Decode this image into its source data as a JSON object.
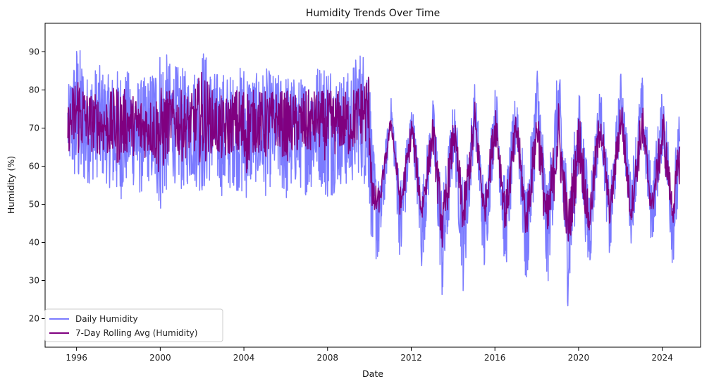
{
  "chart_data": {
    "type": "line",
    "title": "Humidity Trends Over Time",
    "xlabel": "Date",
    "ylabel": "Humidity (%)",
    "x_ticks": [
      "1996",
      "2000",
      "2004",
      "2008",
      "2012",
      "2016",
      "2020",
      "2024"
    ],
    "y_ticks": [
      20,
      30,
      40,
      50,
      60,
      70,
      80,
      90
    ],
    "xlim": [
      "1994-07-01",
      "2025-11-01"
    ],
    "ylim": [
      12.5,
      97.5
    ],
    "grid": false,
    "legend_position": "lower-left",
    "x_start": "1995-08-01",
    "x_end": "2024-11-01",
    "series": [
      {
        "name": "Daily Humidity",
        "color": "#7b7bff",
        "x": [
          "1995-08-01",
          "1996-01-15",
          "1996-07-01",
          "1997-01-15",
          "1997-07-01",
          "1998-01-15",
          "1998-07-01",
          "1999-01-15",
          "1999-07-01",
          "2000-01-15",
          "2000-07-01",
          "2001-01-15",
          "2001-07-01",
          "2002-01-15",
          "2002-07-01",
          "2003-01-15",
          "2003-07-01",
          "2004-01-15",
          "2004-07-01",
          "2005-01-15",
          "2005-07-01",
          "2006-01-15",
          "2006-07-01",
          "2007-01-15",
          "2007-07-01",
          "2008-01-15",
          "2008-07-01",
          "2009-01-15",
          "2009-07-01",
          "2009-12-20",
          "2010-03-01",
          "2010-07-01",
          "2011-01-15",
          "2011-07-01",
          "2012-01-15",
          "2012-07-01",
          "2013-01-15",
          "2013-07-01",
          "2014-01-15",
          "2014-07-01",
          "2015-01-15",
          "2015-07-01",
          "2016-01-15",
          "2016-07-01",
          "2017-01-15",
          "2017-07-01",
          "2018-01-15",
          "2018-07-01",
          "2019-01-15",
          "2019-07-01",
          "2020-01-15",
          "2020-07-01",
          "2021-01-15",
          "2021-07-01",
          "2022-01-15",
          "2022-07-01",
          "2023-01-15",
          "2023-07-01",
          "2024-01-15",
          "2024-07-01",
          "2024-11-01"
        ],
        "min": [
          61,
          52,
          55,
          57,
          55,
          50,
          56,
          52,
          56,
          47,
          57,
          53,
          56,
          52,
          57,
          51,
          55,
          50,
          56,
          52,
          57,
          50,
          55,
          52,
          57,
          50,
          55,
          54,
          58,
          52,
          34,
          35,
          72,
          32,
          68,
          32,
          64,
          22,
          62,
          26,
          68,
          30,
          68,
          30,
          66,
          26,
          66,
          26,
          64,
          22,
          60,
          29,
          69,
          33,
          72,
          39,
          66,
          38,
          64,
          33,
          50
        ],
        "max": [
          80,
          94,
          84,
          87,
          84,
          86,
          85,
          83,
          84,
          93,
          87,
          86,
          84,
          92,
          85,
          85,
          84,
          88,
          84,
          86,
          84,
          85,
          83,
          84,
          87,
          89,
          84,
          85,
          91,
          91,
          66,
          55,
          78,
          57,
          77,
          55,
          78,
          54,
          78,
          56,
          82,
          55,
          82,
          56,
          82,
          54,
          88,
          55,
          88,
          56,
          80,
          56,
          82,
          55,
          86,
          58,
          84,
          58,
          82,
          58,
          75
        ],
        "notes": "Daily values oscillate within the min/max envelope per timestamp."
      },
      {
        "name": "7-Day Rolling Avg (Humidity)",
        "color": "#800080",
        "x": [
          "1995-08-01",
          "1996-01-15",
          "1996-07-01",
          "1997-01-15",
          "1997-07-01",
          "1998-01-15",
          "1998-07-01",
          "1999-01-15",
          "1999-07-01",
          "2000-01-15",
          "2000-07-01",
          "2001-01-15",
          "2001-07-01",
          "2002-01-15",
          "2002-07-01",
          "2003-01-15",
          "2003-07-01",
          "2004-01-15",
          "2004-07-01",
          "2005-01-15",
          "2005-07-01",
          "2006-01-15",
          "2006-07-01",
          "2007-01-15",
          "2007-07-01",
          "2008-01-15",
          "2008-07-01",
          "2009-01-15",
          "2009-07-01",
          "2009-12-20",
          "2010-03-01",
          "2010-07-01",
          "2011-01-15",
          "2011-07-01",
          "2012-01-15",
          "2012-07-01",
          "2013-01-15",
          "2013-07-01",
          "2014-01-15",
          "2014-07-01",
          "2015-01-15",
          "2015-07-01",
          "2016-01-15",
          "2016-07-01",
          "2017-01-15",
          "2017-07-01",
          "2018-01-15",
          "2018-07-01",
          "2019-01-15",
          "2019-07-01",
          "2020-01-15",
          "2020-07-01",
          "2021-01-15",
          "2021-07-01",
          "2022-01-15",
          "2022-07-01",
          "2023-01-15",
          "2023-07-01",
          "2024-01-15",
          "2024-07-01",
          "2024-11-01"
        ],
        "min": [
          64,
          62,
          64,
          63,
          62,
          60,
          64,
          61,
          63,
          56,
          65,
          61,
          64,
          60,
          64,
          60,
          64,
          56,
          64,
          61,
          65,
          61,
          63,
          62,
          65,
          60,
          64,
          62,
          66,
          64,
          45,
          48,
          70,
          45,
          66,
          44,
          64,
          36,
          64,
          40,
          66,
          44,
          66,
          42,
          64,
          40,
          64,
          36,
          60,
          36,
          58,
          40,
          66,
          44,
          68,
          44,
          64,
          46,
          62,
          44,
          56
        ],
        "max": [
          76,
          87,
          80,
          79,
          79,
          82,
          79,
          79,
          78,
          81,
          80,
          80,
          79,
          86,
          80,
          78,
          80,
          82,
          80,
          80,
          80,
          80,
          79,
          80,
          80,
          80,
          80,
          80,
          82,
          86,
          56,
          54,
          74,
          54,
          74,
          52,
          74,
          50,
          74,
          53,
          78,
          52,
          78,
          52,
          76,
          50,
          78,
          52,
          78,
          50,
          76,
          50,
          78,
          51,
          80,
          52,
          78,
          52,
          76,
          52,
          70
        ],
        "notes": "Rolling average oscillates within a narrower min/max envelope."
      }
    ]
  }
}
